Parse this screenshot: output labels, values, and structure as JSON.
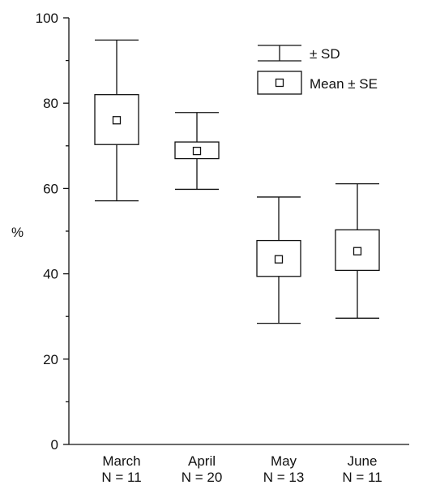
{
  "chart_data": {
    "type": "box",
    "ylabel": "%",
    "ylim": [
      0,
      100
    ],
    "yticks": [
      0,
      20,
      40,
      60,
      80,
      100
    ],
    "categories": [
      {
        "label": "March",
        "n_label": "N = 11"
      },
      {
        "label": "April",
        "n_label": "N = 20"
      },
      {
        "label": "May",
        "n_label": "N = 13"
      },
      {
        "label": "June",
        "n_label": "N = 11"
      }
    ],
    "series": [
      {
        "category": "March",
        "mean": 76,
        "se_low": 70.3,
        "se_high": 82,
        "sd_low": 57.1,
        "sd_high": 94.8
      },
      {
        "category": "April",
        "mean": 68.8,
        "se_low": 67,
        "se_high": 70.9,
        "sd_low": 59.8,
        "sd_high": 77.8
      },
      {
        "category": "May",
        "mean": 43.4,
        "se_low": 39.4,
        "se_high": 47.8,
        "sd_low": 28.4,
        "sd_high": 58
      },
      {
        "category": "June",
        "mean": 45.3,
        "se_low": 40.8,
        "se_high": 50.3,
        "sd_low": 29.6,
        "sd_high": 61.1
      }
    ],
    "legend": [
      {
        "label": "± SD"
      },
      {
        "label": "Mean ± SE"
      }
    ],
    "legend_position": "top-right",
    "grid": false
  }
}
